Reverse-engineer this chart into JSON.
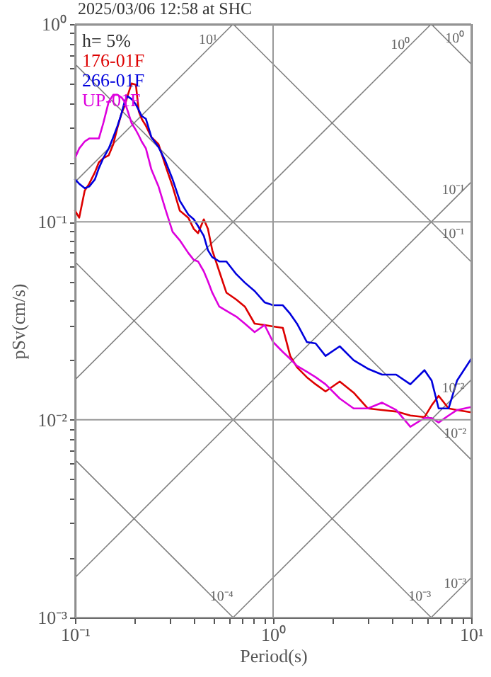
{
  "chart_data": {
    "type": "line",
    "title": "2025/03/06 12:58 at SHC",
    "xlabel": "Period(s)",
    "ylabel": "pSv(cm/s)",
    "log": "xy",
    "grid": true,
    "legend": "top left",
    "xlim": [
      0.1,
      10
    ],
    "ylim": [
      0.001,
      1
    ],
    "xticks": [
      {
        "value": 0.1,
        "label": "10⁻¹"
      },
      {
        "value": 0.2,
        "label": null
      },
      {
        "value": 0.3,
        "label": null
      },
      {
        "value": 0.4,
        "label": null
      },
      {
        "value": 0.5,
        "label": null
      },
      {
        "value": 0.6,
        "label": null
      },
      {
        "value": 0.7,
        "label": null
      },
      {
        "value": 0.8,
        "label": null
      },
      {
        "value": 0.9,
        "label": null
      },
      {
        "value": 1,
        "label": "10⁰"
      },
      {
        "value": 2,
        "label": null
      },
      {
        "value": 3,
        "label": null
      },
      {
        "value": 4,
        "label": null
      },
      {
        "value": 5,
        "label": null
      },
      {
        "value": 6,
        "label": null
      },
      {
        "value": 7,
        "label": null
      },
      {
        "value": 8,
        "label": null
      },
      {
        "value": 9,
        "label": null
      },
      {
        "value": 10,
        "label": "10¹"
      }
    ],
    "yticks": [
      {
        "value": 0.001,
        "label": "10⁻³"
      },
      {
        "value": 0.002,
        "label": null
      },
      {
        "value": 0.003,
        "label": null
      },
      {
        "value": 0.004,
        "label": null
      },
      {
        "value": 0.005,
        "label": null
      },
      {
        "value": 0.006,
        "label": null
      },
      {
        "value": 0.007,
        "label": null
      },
      {
        "value": 0.008,
        "label": null
      },
      {
        "value": 0.009,
        "label": null
      },
      {
        "value": 0.01,
        "label": "10⁻²"
      },
      {
        "value": 0.02,
        "label": null
      },
      {
        "value": 0.03,
        "label": null
      },
      {
        "value": 0.04,
        "label": null
      },
      {
        "value": 0.05,
        "label": null
      },
      {
        "value": 0.06,
        "label": null
      },
      {
        "value": 0.07,
        "label": null
      },
      {
        "value": 0.08,
        "label": null
      },
      {
        "value": 0.09,
        "label": null
      },
      {
        "value": 0.1,
        "label": "10⁻¹"
      },
      {
        "value": 0.2,
        "label": null
      },
      {
        "value": 0.3,
        "label": null
      },
      {
        "value": 0.4,
        "label": null
      },
      {
        "value": 0.5,
        "label": null
      },
      {
        "value": 0.6,
        "label": null
      },
      {
        "value": 0.7,
        "label": null
      },
      {
        "value": 0.8,
        "label": null
      },
      {
        "value": 0.9,
        "label": null
      },
      {
        "value": 1,
        "label": "10⁰"
      }
    ],
    "annotations": [
      "h= 5%",
      {
        "text": "10¹",
        "x": 0.469,
        "y": 0.746
      },
      {
        "text": "10⁰",
        "x": 4.4,
        "y": 0.7
      },
      {
        "text": "10⁰",
        "x": 8.3,
        "y": 0.757
      },
      {
        "text": "10⁻¹",
        "x": 8.1,
        "y": 0.129
      },
      {
        "text": "10⁻¹",
        "x": 8.1,
        "y": 0.0775
      },
      {
        "text": "10⁻²",
        "x": 8.1,
        "y": 0.0129
      },
      {
        "text": "10⁻²",
        "x": 8.3,
        "y": 0.00757
      },
      {
        "text": "10⁻³",
        "x": 8.3,
        "y": 0.00132
      },
      {
        "text": "10⁻³",
        "x": 5.5,
        "y": 0.00114
      },
      {
        "text": "10⁻⁴",
        "x": 0.55,
        "y": 0.00114
      }
    ],
    "x": [
      0.1,
      0.105,
      0.112,
      0.118,
      0.126,
      0.132,
      0.139,
      0.148,
      0.156,
      0.164,
      0.172,
      0.178,
      0.184,
      0.193,
      0.203,
      0.21,
      0.217,
      0.228,
      0.243,
      0.264,
      0.286,
      0.311,
      0.338,
      0.373,
      0.398,
      0.418,
      0.447,
      0.469,
      0.493,
      0.535,
      0.581,
      0.652,
      0.72,
      0.807,
      0.906,
      1.0,
      1.12,
      1.22,
      1.32,
      1.48,
      1.64,
      1.84,
      2.17,
      2.55,
      3.01,
      3.55,
      4.18,
      4.93,
      5.81,
      6.31,
      6.85,
      7.69,
      8.49,
      10
    ],
    "series": [
      {
        "color": "#808080",
        "x": [
          0.1,
          0.628
        ],
        "values": [
          0.159,
          1
        ]
      },
      {
        "color": "#808080",
        "x": [
          0.1,
          6.28
        ],
        "values": [
          0.0159,
          1
        ]
      },
      {
        "color": "#808080",
        "x": [
          0.1,
          10
        ],
        "values": [
          0.00159,
          0.159
        ]
      },
      {
        "color": "#808080",
        "x": [
          0.628,
          10
        ],
        "values": [
          0.001,
          0.0159
        ]
      },
      {
        "color": "#808080",
        "x": [
          6.28,
          10
        ],
        "values": [
          0.001,
          0.00159
        ]
      },
      {
        "color": "#808080",
        "x": [
          6.28,
          10
        ],
        "values": [
          1,
          0.628
        ]
      },
      {
        "color": "#808080",
        "x": [
          0.628,
          10
        ],
        "values": [
          1,
          0.0628
        ]
      },
      {
        "color": "#808080",
        "x": [
          0.1,
          10
        ],
        "values": [
          0.628,
          0.00628
        ]
      },
      {
        "color": "#808080",
        "x": [
          0.1,
          6.28
        ],
        "values": [
          0.0628,
          0.001
        ]
      },
      {
        "color": "#808080",
        "x": [
          0.1,
          0.628
        ],
        "values": [
          0.00628,
          0.001
        ]
      },
      {
        "name": "176-01F",
        "color": "#dd0000",
        "values": [
          0.114,
          0.105,
          0.144,
          0.156,
          0.178,
          0.2,
          0.21,
          0.217,
          0.247,
          0.301,
          0.355,
          0.385,
          0.432,
          0.501,
          0.493,
          0.361,
          0.332,
          0.306,
          0.268,
          0.247,
          0.193,
          0.151,
          0.114,
          0.105,
          0.0921,
          0.0877,
          0.103,
          0.0921,
          0.0719,
          0.0562,
          0.0439,
          0.0405,
          0.0373,
          0.0306,
          0.0301,
          0.0296,
          0.0291,
          0.021,
          0.0184,
          0.0164,
          0.0151,
          0.0139,
          0.0156,
          0.0137,
          0.0114,
          0.0112,
          0.011,
          0.0105,
          0.0103,
          0.0118,
          0.0132,
          0.0114,
          0.0112,
          0.0109
        ]
      },
      {
        "name": "266-01F",
        "color": "#0000dd",
        "values": [
          0.164,
          0.156,
          0.148,
          0.151,
          0.164,
          0.187,
          0.21,
          0.235,
          0.268,
          0.306,
          0.355,
          0.405,
          0.432,
          0.418,
          0.392,
          0.367,
          0.343,
          0.332,
          0.268,
          0.239,
          0.203,
          0.164,
          0.128,
          0.109,
          0.103,
          0.0952,
          0.0849,
          0.0719,
          0.0663,
          0.0631,
          0.0631,
          0.0544,
          0.0493,
          0.0447,
          0.0392,
          0.0379,
          0.0379,
          0.0343,
          0.0306,
          0.0247,
          0.0243,
          0.021,
          0.0235,
          0.02,
          0.0181,
          0.0169,
          0.0169,
          0.0151,
          0.0178,
          0.0158,
          0.0114,
          0.0114,
          0.0158,
          0.0203
        ]
      },
      {
        "name": "UP-01F",
        "color": "#dd00dd",
        "values": [
          0.21,
          0.235,
          0.255,
          0.264,
          0.264,
          0.264,
          0.316,
          0.405,
          0.439,
          0.439,
          0.425,
          0.405,
          0.367,
          0.316,
          0.291,
          0.273,
          0.255,
          0.235,
          0.184,
          0.151,
          0.116,
          0.0891,
          0.0807,
          0.0697,
          0.0642,
          0.0631,
          0.0562,
          0.0501,
          0.0439,
          0.0373,
          0.0355,
          0.0332,
          0.0306,
          0.0277,
          0.0301,
          0.0247,
          0.022,
          0.0203,
          0.0187,
          0.0175,
          0.0164,
          0.0151,
          0.0128,
          0.0114,
          0.0114,
          0.0122,
          0.0112,
          0.00921,
          0.0102,
          0.0102,
          0.00968,
          0.0105,
          0.0112,
          0.0116
        ]
      }
    ]
  }
}
